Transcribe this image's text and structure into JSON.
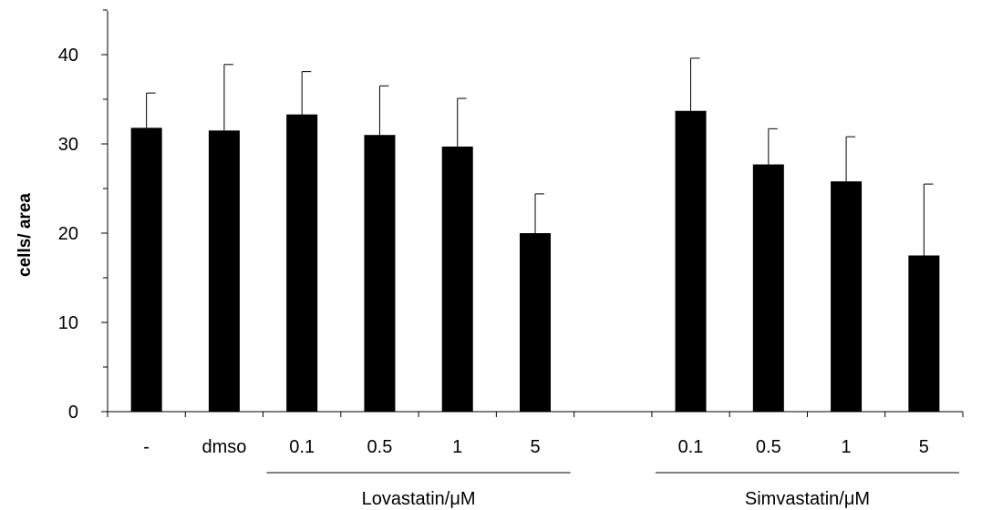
{
  "chart_data": {
    "type": "bar",
    "title": "",
    "xlabel": "",
    "ylabel": "cells/ area",
    "ylim": [
      0,
      40
    ],
    "yticks": [
      "0",
      "10",
      "20",
      "30",
      "40"
    ],
    "grid": false,
    "legend": "none",
    "bar_color": "#000000",
    "categories": [
      "-",
      "dmso",
      "0.1",
      "0.5",
      "1",
      "5",
      "",
      "0.1",
      "0.5",
      "1",
      "5"
    ],
    "values": [
      31.8,
      31.5,
      33.3,
      31.0,
      29.7,
      20.0,
      null,
      33.7,
      27.7,
      25.8,
      17.5
    ],
    "errors": [
      3.9,
      7.4,
      4.8,
      5.5,
      5.4,
      4.4,
      null,
      5.9,
      4.0,
      5.0,
      8.0
    ],
    "groups": [
      {
        "label": "Lovastatin/μM",
        "start": 2,
        "end": 5
      },
      {
        "label": "Simvastatin/μM",
        "start": 7,
        "end": 10
      }
    ]
  }
}
